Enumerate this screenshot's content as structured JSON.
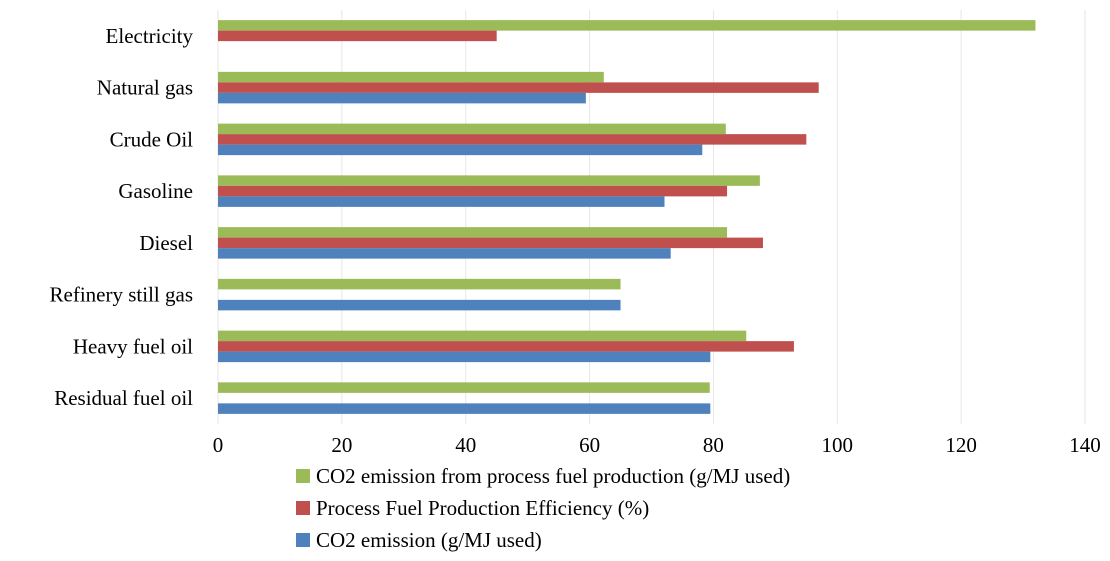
{
  "chart_data": {
    "type": "bar",
    "orientation": "horizontal",
    "title": "",
    "xlabel": "",
    "ylabel": "",
    "categories": [
      "Electricity",
      "Natural gas",
      "Crude Oil",
      "Gasoline",
      "Diesel",
      "Refinery still gas",
      "Heavy fuel oil",
      "Residual fuel oil"
    ],
    "series": [
      {
        "name": "CO2 emission from process fuel production (g/MJ used)",
        "color": "#9BBB59",
        "values": [
          132,
          62.3,
          82,
          87.5,
          82.2,
          65,
          85.3,
          79.4
        ]
      },
      {
        "name": "Process Fuel Production Efficiency (%)",
        "color": "#C0504D",
        "values": [
          45,
          97,
          95,
          82.2,
          88,
          null,
          93,
          null
        ]
      },
      {
        "name": "CO2 emission (g/MJ used)",
        "color": "#4F81BD",
        "values": [
          null,
          59.4,
          78.2,
          72.1,
          73.1,
          65,
          79.5,
          79.5
        ]
      }
    ],
    "xlim": [
      0,
      140
    ],
    "xticks": [
      "0",
      "20",
      "40",
      "60",
      "80",
      "100",
      "120",
      "140"
    ],
    "grid": true,
    "legend_position": "bottom"
  }
}
